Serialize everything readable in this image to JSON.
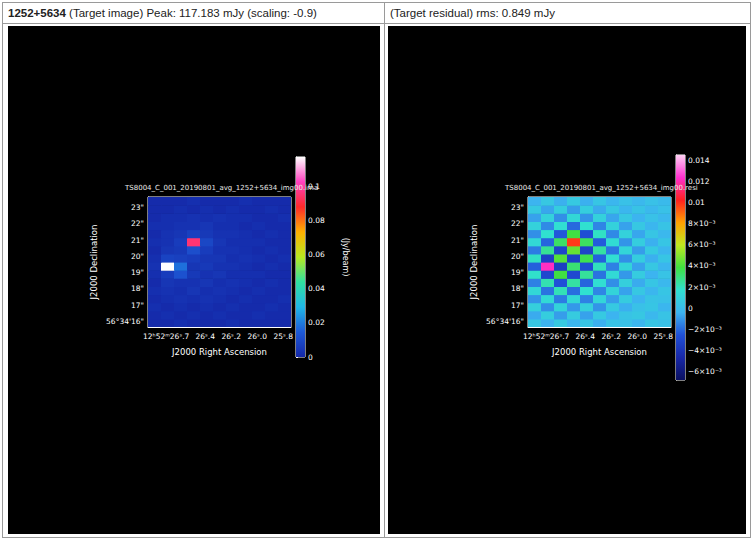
{
  "chart_data": [
    {
      "type": "heatmap",
      "title": "1252+5634",
      "subtitle": "(Target image) Peak: 117.183 mJy (scaling: -0.9)",
      "annotations": [
        "TS8004_C_001_20190801_avg_1252+5634_img00.ima"
      ],
      "xlabel": "J2000 Right Ascension",
      "ylabel": "J2000 Declination",
      "xlim": [
        26.84,
        25.74
      ],
      "ylim": [
        15.65,
        23.65
      ],
      "xticks": [
        {
          "value": 26.7,
          "label": "12ʰ52ᵐ26ˢ.7"
        },
        {
          "value": 26.4,
          "label": "26ˢ.4"
        },
        {
          "value": 26.2,
          "label": "26ˢ.2"
        },
        {
          "value": 26.0,
          "label": "26ˢ.0"
        },
        {
          "value": 25.8,
          "label": "25ˢ.8"
        }
      ],
      "yticks": [
        {
          "value": 16,
          "label": "56°34'16\""
        },
        {
          "value": 17,
          "label": "17\""
        },
        {
          "value": 18,
          "label": "18\""
        },
        {
          "value": 19,
          "label": "19\""
        },
        {
          "value": 20,
          "label": "20\""
        },
        {
          "value": 21,
          "label": "21\""
        },
        {
          "value": 22,
          "label": "22\""
        },
        {
          "value": 23,
          "label": "23\""
        }
      ],
      "x": [
        26.79,
        26.69,
        26.59,
        26.49,
        26.39,
        26.29,
        26.19,
        26.09,
        25.99,
        25.89,
        25.79
      ],
      "y": [
        15.9,
        16.4,
        16.9,
        17.4,
        17.9,
        18.4,
        18.9,
        19.4,
        19.9,
        20.4,
        20.9,
        21.4,
        21.9,
        22.4,
        22.9,
        23.4
      ],
      "cells": [
        [
          0.001,
          0.001,
          0.002,
          0.001,
          0.001,
          0.001,
          0.002,
          0.001,
          0.001,
          0.001,
          0.001
        ],
        [
          0.001,
          0.002,
          0.001,
          0.002,
          0.001,
          0.002,
          0.001,
          0.001,
          0.002,
          0.001,
          0.001
        ],
        [
          0.002,
          0.001,
          0.002,
          0.001,
          0.002,
          0.001,
          0.002,
          0.001,
          0.001,
          0.002,
          0.001
        ],
        [
          0.001,
          0.002,
          0.003,
          0.002,
          0.003,
          0.002,
          0.001,
          0.002,
          0.001,
          0.001,
          0.002
        ],
        [
          0.002,
          0.003,
          0.002,
          0.004,
          0.002,
          0.003,
          0.002,
          0.001,
          0.002,
          0.001,
          0.001
        ],
        [
          0.001,
          0.004,
          0.003,
          0.003,
          0.004,
          0.002,
          0.003,
          0.002,
          0.001,
          0.002,
          0.001
        ],
        [
          0.002,
          0.006,
          0.012,
          0.005,
          0.003,
          0.004,
          0.002,
          0.002,
          0.002,
          0.001,
          0.001
        ],
        [
          0.003,
          0.117183,
          0.018,
          0.004,
          0.005,
          0.003,
          0.003,
          0.002,
          0.001,
          0.002,
          0.001
        ],
        [
          0.002,
          0.008,
          0.007,
          0.006,
          0.004,
          0.004,
          0.002,
          0.003,
          0.002,
          0.001,
          0.002
        ],
        [
          0.001,
          0.004,
          0.005,
          0.011,
          0.006,
          0.003,
          0.003,
          0.002,
          0.001,
          0.002,
          0.001
        ],
        [
          0.002,
          0.003,
          0.006,
          0.095,
          0.009,
          0.004,
          0.002,
          0.002,
          0.002,
          0.001,
          0.001
        ],
        [
          0.001,
          0.003,
          0.004,
          0.007,
          0.005,
          0.003,
          0.003,
          0.002,
          0.001,
          0.002,
          0.001
        ],
        [
          0.002,
          0.002,
          0.003,
          0.003,
          0.004,
          0.002,
          0.002,
          0.001,
          0.002,
          0.001,
          0.001
        ],
        [
          0.001,
          0.002,
          0.002,
          0.003,
          0.002,
          0.003,
          0.002,
          0.002,
          0.001,
          0.001,
          0.002
        ],
        [
          0.001,
          0.001,
          0.002,
          0.001,
          0.002,
          0.001,
          0.002,
          0.001,
          0.001,
          0.002,
          0.001
        ],
        [
          0.001,
          0.001,
          0.001,
          0.002,
          0.001,
          0.001,
          0.001,
          0.002,
          0.001,
          0.001,
          0.001
        ]
      ],
      "colorbar_range": [
        0,
        0.117183
      ],
      "colorbar_ticks": [
        0,
        0.02,
        0.04,
        0.06,
        0.08,
        0.1
      ],
      "colorbar_label": "(Jy/beam)"
    },
    {
      "type": "heatmap",
      "subtitle": "(Target residual) rms: 0.849 mJy",
      "annotations": [
        "TS8004_C_001_20190801_avg_1252+5634_img00.resi"
      ],
      "xlabel": "J2000 Right Ascension",
      "ylabel": "J2000 Declination",
      "xlim": [
        26.84,
        25.74
      ],
      "ylim": [
        15.65,
        23.65
      ],
      "xticks": [
        {
          "value": 26.7,
          "label": "12ʰ52ᵐ26ˢ.7"
        },
        {
          "value": 26.4,
          "label": "26ˢ.4"
        },
        {
          "value": 26.2,
          "label": "26ˢ.2"
        },
        {
          "value": 26.0,
          "label": "26ˢ.0"
        },
        {
          "value": 25.8,
          "label": "25ˢ.8"
        }
      ],
      "yticks": [
        {
          "value": 16,
          "label": "56°34'16\""
        },
        {
          "value": 17,
          "label": "17\""
        },
        {
          "value": 18,
          "label": "18\""
        },
        {
          "value": 19,
          "label": "19\""
        },
        {
          "value": 20,
          "label": "20\""
        },
        {
          "value": 21,
          "label": "21\""
        },
        {
          "value": 22,
          "label": "22\""
        },
        {
          "value": 23,
          "label": "23\""
        }
      ],
      "x": [
        26.79,
        26.69,
        26.59,
        26.49,
        26.39,
        26.29,
        26.19,
        26.09,
        25.99,
        25.89,
        25.79
      ],
      "y": [
        15.9,
        16.4,
        16.9,
        17.4,
        17.9,
        18.4,
        18.9,
        19.4,
        19.9,
        20.4,
        20.9,
        21.4,
        21.9,
        22.4,
        22.9,
        23.4
      ],
      "cells": [
        [
          0.0005,
          -0.0004,
          0.0006,
          -0.0003,
          0.0004,
          -0.0005,
          0.0003,
          0.0002,
          -0.0003,
          0.0004,
          0.0002
        ],
        [
          -0.0006,
          0.0008,
          -0.0009,
          0.0007,
          -0.0008,
          0.0006,
          -0.0004,
          0.0003,
          0.0005,
          -0.0002,
          0.0003
        ],
        [
          0.0009,
          -0.0012,
          0.0011,
          -0.001,
          0.0009,
          -0.0011,
          0.0006,
          -0.0005,
          0.0002,
          0.0004,
          -0.0003
        ],
        [
          -0.0011,
          0.0014,
          -0.0016,
          0.0013,
          -0.0015,
          0.0012,
          -0.0009,
          0.0007,
          -0.0004,
          0.0003,
          0.0002
        ],
        [
          0.0013,
          -0.0018,
          0.0021,
          -0.0019,
          0.0017,
          -0.0014,
          0.0011,
          -0.0008,
          0.0005,
          -0.0003,
          0.0004
        ],
        [
          -0.0015,
          0.0022,
          -0.0026,
          0.0024,
          -0.0021,
          0.0016,
          -0.0012,
          0.0009,
          -0.0006,
          0.0004,
          -0.0002
        ],
        [
          0.0018,
          -0.003,
          0.0038,
          -0.0029,
          0.0025,
          -0.0018,
          0.0014,
          -0.001,
          0.0007,
          -0.0004,
          0.0003
        ],
        [
          -0.0022,
          0.0122,
          -0.0035,
          0.0031,
          -0.0027,
          0.002,
          -0.0015,
          0.0011,
          -0.0008,
          0.0005,
          -0.0003
        ],
        [
          0.0019,
          -0.0034,
          0.0042,
          -0.0033,
          0.0036,
          -0.0022,
          0.0016,
          -0.0012,
          0.0008,
          -0.0005,
          0.0004
        ],
        [
          -0.0016,
          0.0026,
          -0.0031,
          0.0045,
          -0.0032,
          0.0024,
          -0.0017,
          0.0012,
          -0.0009,
          0.0006,
          -0.0003
        ],
        [
          0.0014,
          -0.0021,
          0.0033,
          0.0098,
          0.0034,
          -0.0023,
          0.0015,
          -0.0011,
          0.0008,
          -0.0005,
          0.0004
        ],
        [
          -0.0012,
          0.0017,
          -0.0024,
          0.0038,
          -0.0027,
          0.0019,
          -0.0013,
          0.001,
          -0.0007,
          0.0004,
          -0.0002
        ],
        [
          0.001,
          -0.0013,
          0.0016,
          -0.002,
          0.0017,
          -0.0014,
          0.001,
          -0.0008,
          0.0005,
          -0.0003,
          0.0003
        ],
        [
          -0.0008,
          0.001,
          -0.0012,
          0.0013,
          -0.0011,
          0.001,
          -0.0007,
          0.0005,
          -0.0004,
          0.0002,
          -0.0002
        ],
        [
          0.0006,
          -0.0007,
          0.0008,
          -0.0009,
          0.0008,
          -0.0006,
          0.0005,
          -0.0003,
          0.0003,
          -0.0002,
          0.0002
        ],
        [
          -0.0004,
          0.0005,
          -0.0005,
          0.0006,
          -0.0005,
          0.0004,
          -0.0003,
          0.0002,
          -0.0002,
          0.0002,
          -0.0001
        ]
      ],
      "colorbar_range": [
        -0.0068,
        0.0145
      ],
      "colorbar_ticks": [
        0.014,
        0.012,
        0.01,
        {
          "value": 0.008,
          "label": "8×10⁻³"
        },
        {
          "value": 0.006,
          "label": "6×10⁻³"
        },
        {
          "value": 0.004,
          "label": "4×10⁻³"
        },
        {
          "value": 0.002,
          "label": "2×10⁻³"
        },
        0,
        {
          "value": -0.002,
          "label": "−2×10⁻³"
        },
        {
          "value": -0.004,
          "label": "−4×10⁻³"
        },
        {
          "value": -0.006,
          "label": "−6×10⁻³"
        }
      ]
    }
  ]
}
